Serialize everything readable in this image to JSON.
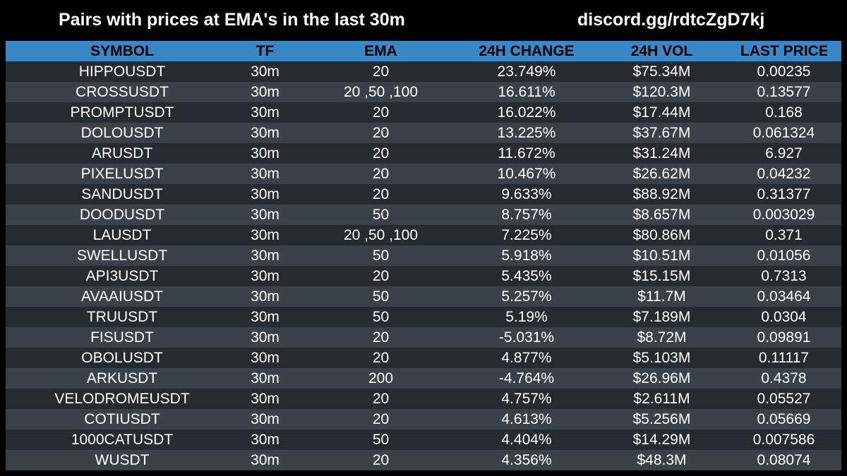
{
  "header": {
    "title": "Pairs with prices at EMA's in the last 30m",
    "discord": "discord.gg/rdtcZgD7kj"
  },
  "colors": {
    "background": "#000000",
    "header_row": "#3a87c8",
    "row_dark": "#262b30",
    "row_light": "#3b4247"
  },
  "table": {
    "columns": [
      "SYMBOL",
      "TF",
      "EMA",
      "24H CHANGE",
      "24H VOL",
      "LAST PRICE"
    ],
    "rows": [
      [
        "HIPPOUSDT",
        "30m",
        "20",
        "23.749%",
        "$75.34M",
        "0.00235"
      ],
      [
        "CROSSUSDT",
        "30m",
        "20 ,50 ,100",
        "16.611%",
        "$120.3M",
        "0.13577"
      ],
      [
        "PROMPTUSDT",
        "30m",
        "20",
        "16.022%",
        "$17.44M",
        "0.168"
      ],
      [
        "DOLOUSDT",
        "30m",
        "20",
        "13.225%",
        "$37.67M",
        "0.061324"
      ],
      [
        "ARUSDT",
        "30m",
        "20",
        "11.672%",
        "$31.24M",
        "6.927"
      ],
      [
        "PIXELUSDT",
        "30m",
        "20",
        "10.467%",
        "$26.62M",
        "0.04232"
      ],
      [
        "SANDUSDT",
        "30m",
        "20",
        "9.633%",
        "$88.92M",
        "0.31377"
      ],
      [
        "DOODUSDT",
        "30m",
        "50",
        "8.757%",
        "$8.657M",
        "0.003029"
      ],
      [
        "LAUSDT",
        "30m",
        "20 ,50 ,100",
        "7.225%",
        "$80.86M",
        "0.371"
      ],
      [
        "SWELLUSDT",
        "30m",
        "50",
        "5.918%",
        "$10.51M",
        "0.01056"
      ],
      [
        "API3USDT",
        "30m",
        "20",
        "5.435%",
        "$15.15M",
        "0.7313"
      ],
      [
        "AVAAIUSDT",
        "30m",
        "50",
        "5.257%",
        "$11.7M",
        "0.03464"
      ],
      [
        "TRUUSDT",
        "30m",
        "50",
        "5.19%",
        "$7.189M",
        "0.0304"
      ],
      [
        "FISUSDT",
        "30m",
        "20",
        "-5.031%",
        "$8.72M",
        "0.09891"
      ],
      [
        "OBOLUSDT",
        "30m",
        "20",
        "4.877%",
        "$5.103M",
        "0.11117"
      ],
      [
        "ARKUSDT",
        "30m",
        "200",
        "-4.764%",
        "$26.96M",
        "0.4378"
      ],
      [
        "VELODROMEUSDT",
        "30m",
        "20",
        "4.757%",
        "$2.611M",
        "0.05527"
      ],
      [
        "COTIUSDT",
        "30m",
        "20",
        "4.613%",
        "$5.256M",
        "0.05669"
      ],
      [
        "1000CATUSDT",
        "30m",
        "50",
        "4.404%",
        "$14.29M",
        "0.007586"
      ],
      [
        "WUSDT",
        "30m",
        "20",
        "4.356%",
        "$48.3M",
        "0.08074"
      ]
    ]
  }
}
